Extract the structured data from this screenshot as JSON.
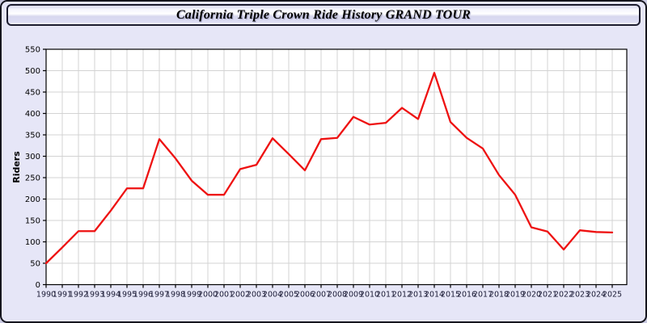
{
  "window": {
    "title": "California Triple Crown Ride History GRAND TOUR"
  },
  "chart_data": {
    "type": "line",
    "title": "California Triple Crown Ride History GRAND TOUR",
    "xlabel": "",
    "ylabel": "Riders",
    "x": [
      1990,
      1991,
      1992,
      1993,
      1994,
      1995,
      1996,
      1997,
      1998,
      1999,
      2000,
      2001,
      2002,
      2003,
      2004,
      2005,
      2006,
      2007,
      2008,
      2009,
      2010,
      2011,
      2012,
      2013,
      2014,
      2015,
      2016,
      2017,
      2018,
      2019,
      2020,
      2021,
      2022,
      2023,
      2024,
      2025
    ],
    "values": [
      50,
      87,
      125,
      125,
      173,
      225,
      225,
      340,
      295,
      243,
      210,
      210,
      270,
      280,
      342,
      305,
      267,
      340,
      343,
      392,
      374,
      378,
      413,
      387,
      495,
      380,
      343,
      318,
      256,
      210,
      134,
      124,
      82,
      127,
      123,
      122
    ],
    "ylim": [
      0,
      550
    ],
    "ytick_step": 50,
    "xtick_step": 1,
    "grid": true,
    "legend": "none",
    "line_color": "#ee1111"
  },
  "colors": {
    "page_background": "#e6e6f7",
    "plot_background": "#ffffff",
    "gridline": "#d3d3d3",
    "axis": "#000000",
    "x_tick_label": "#1b1b35",
    "y_tick_label": "#000000"
  }
}
